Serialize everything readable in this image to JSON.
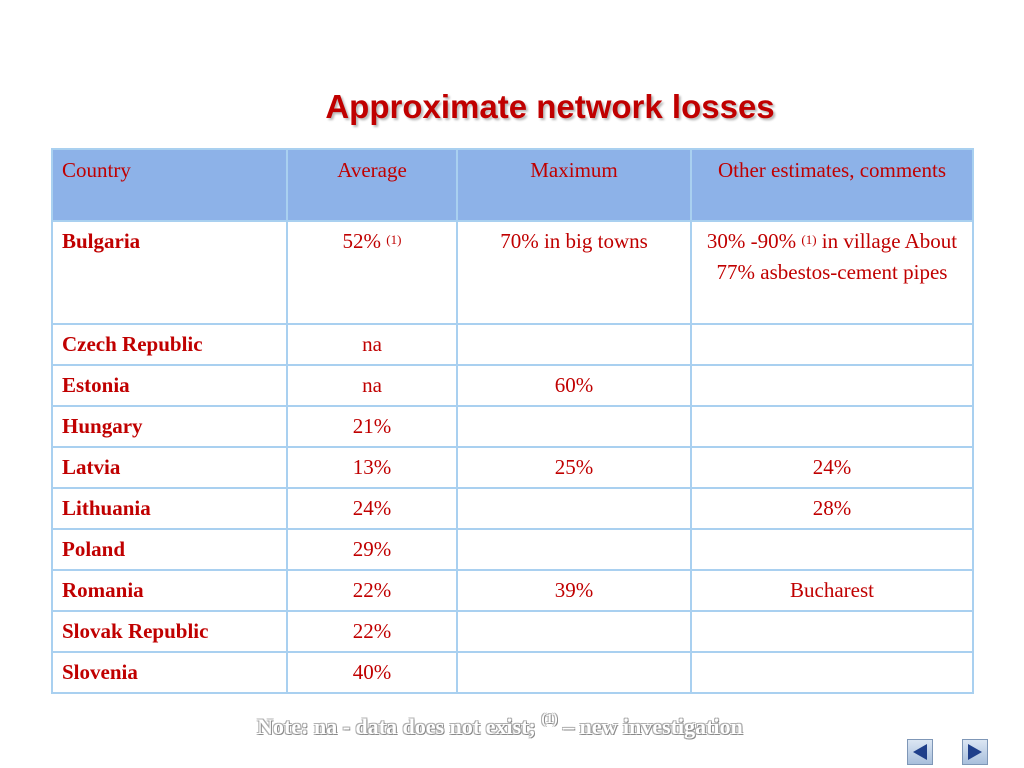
{
  "title": "Approximate network losses",
  "table": {
    "headers": [
      "Country",
      "Average",
      "Maximum",
      "Other estimates, comments"
    ],
    "rows": [
      {
        "country": "Bulgaria",
        "average": "52%",
        "average_sup": "(1)",
        "maximum": "70% in big towns",
        "other_pre": "30% -90%",
        "other_sup": "(1)",
        "other_post": " in village About 77% asbestos-cement pipes"
      },
      {
        "country": "Czech Republic",
        "average": "na",
        "average_sup": "",
        "maximum": "",
        "other_pre": "",
        "other_sup": "",
        "other_post": ""
      },
      {
        "country": "Estonia",
        "average": "na",
        "average_sup": "",
        "maximum": "60%",
        "other_pre": "",
        "other_sup": "",
        "other_post": ""
      },
      {
        "country": "Hungary",
        "average": "21%",
        "average_sup": "",
        "maximum": "",
        "other_pre": "",
        "other_sup": "",
        "other_post": ""
      },
      {
        "country": "Latvia",
        "average": "13%",
        "average_sup": "",
        "maximum": "25%",
        "other_pre": "24%",
        "other_sup": "",
        "other_post": ""
      },
      {
        "country": "Lithuania",
        "average": "24%",
        "average_sup": "",
        "maximum": "",
        "other_pre": "28%",
        "other_sup": "",
        "other_post": ""
      },
      {
        "country": "Poland",
        "average": "29%",
        "average_sup": "",
        "maximum": "",
        "other_pre": "",
        "other_sup": "",
        "other_post": ""
      },
      {
        "country": "Romania",
        "average": "22%",
        "average_sup": "",
        "maximum": "39%",
        "other_pre": "Bucharest",
        "other_sup": "",
        "other_post": ""
      },
      {
        "country": "Slovak Republic",
        "average": "22%",
        "average_sup": "",
        "maximum": "",
        "other_pre": "",
        "other_sup": "",
        "other_post": ""
      },
      {
        "country": "Slovenia",
        "average": "40%",
        "average_sup": "",
        "maximum": "",
        "other_pre": "",
        "other_sup": "",
        "other_post": ""
      }
    ]
  },
  "note": {
    "prefix": "Note:  na - data does not exist; ",
    "sup": "(1)",
    "suffix": " – new investigation"
  },
  "nav": {
    "prev_icon": "triangle-left-icon",
    "next_icon": "triangle-right-icon"
  },
  "colors": {
    "text_red": "#c00000",
    "header_bg": "#8db2e8",
    "grid_border": "#a9d0f0",
    "nav_arrow": "#1f3f8a"
  }
}
